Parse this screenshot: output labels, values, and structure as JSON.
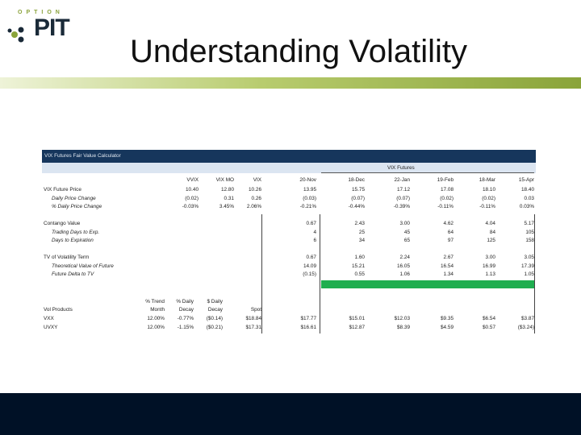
{
  "logo": {
    "top": "OPTION",
    "main": "PIT"
  },
  "title": "Understanding Volatility",
  "table": {
    "header": "VIX Futures Fair Value Calculator",
    "vix_futures_label": "VIX Futures",
    "col_headers": [
      "VVIX",
      "VIX MO",
      "VIX",
      "20-Nov",
      "18-Dec",
      "22-Jan",
      "19-Feb",
      "18-Mar",
      "15-Apr"
    ],
    "rows": [
      {
        "label": "VIX Future Price",
        "indent": false,
        "values": [
          "10.40",
          "12.80",
          "10.26",
          "13.95",
          "15.75",
          "17.12",
          "17.08",
          "18.10",
          "18.40"
        ]
      },
      {
        "label": "Daily Price Change",
        "indent": true,
        "values": [
          "(0.02)",
          "0.31",
          "0.26",
          "(0.03)",
          "(0.07)",
          "(0.07)",
          "(0.02)",
          "(0.02)",
          "0.03"
        ]
      },
      {
        "label": "% Daily Price Change",
        "indent": true,
        "values": [
          "-0.03%",
          "3.45%",
          "2.06%",
          "-0.21%",
          "-0.44%",
          "-0.39%",
          "-0.11%",
          "-0.11%",
          "0.03%"
        ]
      },
      {
        "label": "",
        "indent": false,
        "values": [
          "",
          "",
          "",
          "",
          "",
          "",
          "",
          "",
          ""
        ]
      },
      {
        "label": "Contango Value",
        "indent": false,
        "values": [
          "",
          "",
          "",
          "0.67",
          "2.43",
          "3.00",
          "4.62",
          "4.04",
          "5.17"
        ]
      },
      {
        "label": "Trading Days to Exp.",
        "indent": true,
        "values": [
          "",
          "",
          "",
          "4",
          "25",
          "45",
          "64",
          "84",
          "105"
        ]
      },
      {
        "label": "Days to Expiration",
        "indent": true,
        "values": [
          "",
          "",
          "",
          "6",
          "34",
          "65",
          "97",
          "125",
          "158"
        ]
      },
      {
        "label": "",
        "indent": false,
        "values": [
          "",
          "",
          "",
          "",
          "",
          "",
          "",
          "",
          ""
        ]
      },
      {
        "label": "TV of Volatility Term",
        "indent": false,
        "values": [
          "",
          "",
          "",
          "0.67",
          "1.60",
          "2.24",
          "2.67",
          "3.00",
          "3.05"
        ]
      },
      {
        "label": "Theoretical Value of Future",
        "indent": true,
        "values": [
          "",
          "",
          "",
          "14.09",
          "15.21",
          "16.05",
          "16.54",
          "16.99",
          "17.39"
        ]
      },
      {
        "label": "Future Delta to TV",
        "indent": true,
        "values": [
          "",
          "",
          "",
          "(0.15)",
          "0.55",
          "1.06",
          "1.34",
          "1.13",
          "1.05"
        ]
      }
    ],
    "products": {
      "col_headers_top": [
        "% Trend",
        "% Daily",
        "$ Daily"
      ],
      "col_headers_bottom": [
        "Month",
        "Decay",
        "Decay",
        "Spot"
      ],
      "section_label": "Vol Products",
      "rows": [
        {
          "label": "VXX",
          "values": [
            "12.00%",
            "-0.77%",
            "($0.14)",
            "$18.84",
            "$17.77",
            "$15.01",
            "$12.03",
            "$9.35",
            "$6.54",
            "$3.87"
          ]
        },
        {
          "label": "UVXY",
          "values": [
            "12.00%",
            "-1.15%",
            "($0.21)",
            "$17.31",
            "$16.61",
            "$12.87",
            "$8.39",
            "$4.59",
            "$0.57",
            "($3.24)"
          ]
        }
      ]
    }
  },
  "colors": {
    "header_bg": "#16365c",
    "green_highlight": "#1fae4f",
    "footer_bg": "#001126",
    "accent": "#8aa43a"
  }
}
